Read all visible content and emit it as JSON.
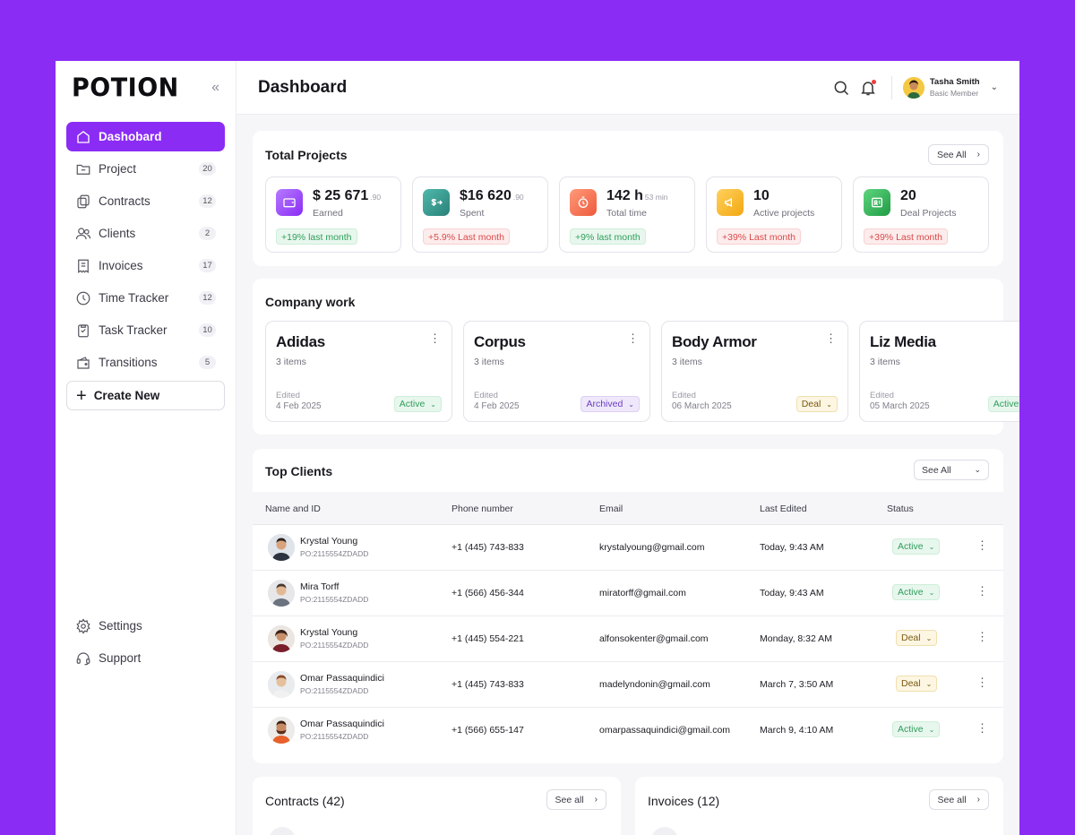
{
  "brand": {
    "logo": "POTION"
  },
  "sidebar": {
    "items": [
      {
        "label": "Dashobard",
        "count": "",
        "icon": "home-icon"
      },
      {
        "label": "Project",
        "count": "20",
        "icon": "folder-icon"
      },
      {
        "label": "Contracts",
        "count": "12",
        "icon": "copy-icon"
      },
      {
        "label": "Clients",
        "count": "2",
        "icon": "users-icon"
      },
      {
        "label": "Invoices",
        "count": "17",
        "icon": "receipt-icon"
      },
      {
        "label": "Time Tracker",
        "count": "12",
        "icon": "clock-icon"
      },
      {
        "label": "Task Tracker",
        "count": "10",
        "icon": "clipboard-icon"
      },
      {
        "label": "Transitions",
        "count": "5",
        "icon": "wallet-icon"
      }
    ],
    "create_label": "Create New",
    "settings_label": "Settings",
    "support_label": "Support"
  },
  "header": {
    "title": "Dashboard",
    "user_name": "Tasha Smith",
    "user_role": "Basic Member"
  },
  "total_projects": {
    "title": "Total Projects",
    "see_all": "See All",
    "stats": [
      {
        "value": "$ 25 671",
        "suffix": ".90",
        "label": "Earned",
        "badge": "+19% last month",
        "color": "#9b4df7"
      },
      {
        "value": "$16 620",
        "suffix": ".90",
        "label": "Spent",
        "badge": "+5.9% Last month",
        "color": "#2f9a8f"
      },
      {
        "value": "142 h",
        "suffix": "53 min",
        "label": "Total time",
        "badge": "+9% last month",
        "color": "#f26d4f"
      },
      {
        "value": "10",
        "suffix": "",
        "label": "Active projects",
        "badge": "+39% Last month",
        "color": "#f5b324"
      },
      {
        "value": "20",
        "suffix": "",
        "label": "Deal Projects",
        "badge": "+39% Last month",
        "color": "#2fb457"
      }
    ]
  },
  "company_work": {
    "title": "Company work",
    "companies": [
      {
        "name": "Adidas",
        "items": "3 items",
        "edited": "Edited",
        "date": "4 Feb 2025",
        "status": "Active"
      },
      {
        "name": "Corpus",
        "items": "3 items",
        "edited": "Edited",
        "date": "4 Feb 2025",
        "status": "Archived"
      },
      {
        "name": "Body Armor",
        "items": "3 items",
        "edited": "Edited",
        "date": "06 March 2025",
        "status": "Deal"
      },
      {
        "name": "Liz Media",
        "items": "3 items",
        "edited": "Edited",
        "date": "05 March 2025",
        "status": "Active"
      }
    ]
  },
  "top_clients": {
    "title": "Top Clients",
    "see_all": "See All",
    "columns": [
      "Name and ID",
      "Phone number",
      "Email",
      "Last Edited",
      "Status"
    ],
    "rows": [
      {
        "name": "Krystal Young",
        "id": "PO:2115554ZDADD",
        "phone": "+1 (445) 743-833",
        "email": "krystalyoung@gmail.com",
        "edited": "Today, 9:43 AM",
        "status": "Active"
      },
      {
        "name": "Mira Torff",
        "id": "PO:2115554ZDADD",
        "phone": "+1 (566) 456-344",
        "email": "miratorff@gmail.com",
        "edited": "Today, 9:43 AM",
        "status": "Active"
      },
      {
        "name": "Krystal Young",
        "id": "PO:2115554ZDADD",
        "phone": "+1 (445) 554-221",
        "email": "alfonsokenter@gmail.com",
        "edited": "Monday, 8:32 AM",
        "status": "Deal"
      },
      {
        "name": "Omar Passaquindici",
        "id": "PO:2115554ZDADD",
        "phone": "+1 (445) 743-833",
        "email": "madelyndonin@gmail.com",
        "edited": "March 7, 3:50 AM",
        "status": "Deal"
      },
      {
        "name": "Omar Passaquindici",
        "id": "PO:2115554ZDADD",
        "phone": "+1 (566) 655-147",
        "email": "omarpassaquindici@gmail.com",
        "edited": "March 9, 4:10 AM",
        "status": "Active"
      }
    ]
  },
  "contracts": {
    "title": "Contracts (42)",
    "see_all": "See all"
  },
  "invoices": {
    "title": "Invoices (12)",
    "see_all": "See all"
  }
}
